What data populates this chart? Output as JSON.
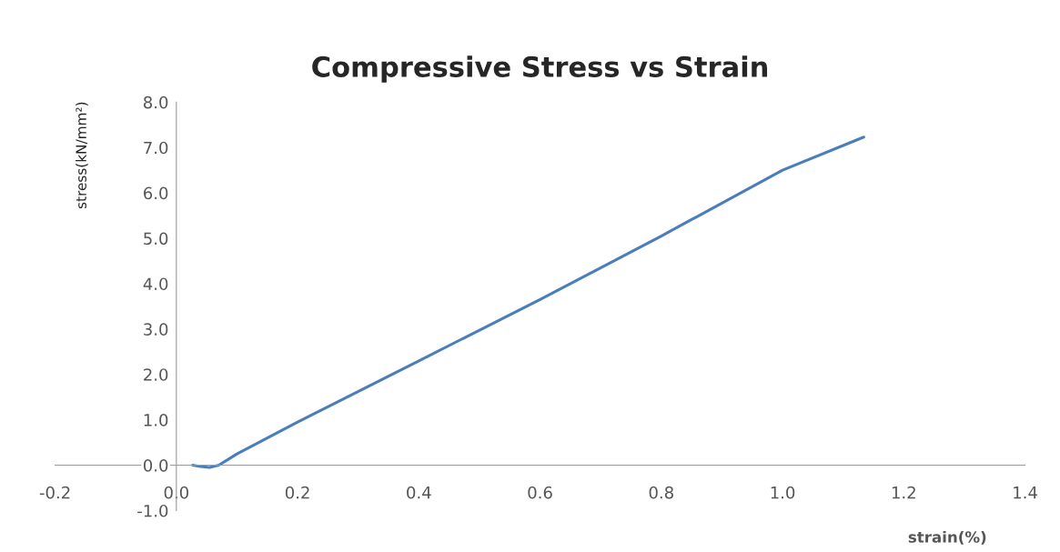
{
  "chart_data": {
    "type": "line",
    "title": "Compressive Stress vs Strain",
    "xlabel": "strain(%)",
    "ylabel": "stress(kN/mm²)",
    "series": [
      {
        "color": "#4a7ebb",
        "x": [
          0.027,
          0.04,
          0.055,
          0.07,
          0.1,
          0.2,
          0.4,
          0.6,
          0.8,
          1.0,
          1.134
        ],
        "values": [
          0.0,
          -0.03,
          -0.05,
          0.0,
          0.25,
          0.95,
          2.3,
          3.65,
          5.05,
          6.5,
          7.23
        ]
      }
    ],
    "xlim": [
      -0.2,
      1.4
    ],
    "xticks": [
      {
        "value": -0.2,
        "label": "-0.2"
      },
      {
        "value": 0,
        "label": "0.0"
      },
      0.2,
      0.4,
      0.6,
      0.8,
      {
        "value": 1.0,
        "label": "1.0"
      },
      1.2,
      1.4
    ],
    "ylim": [
      -1.0,
      8.0
    ],
    "yticks": [
      {
        "value": -1.0,
        "label": "-1.0"
      },
      {
        "value": 0,
        "label": "0.0"
      },
      {
        "value": 1,
        "label": "1.0"
      },
      {
        "value": 2,
        "label": "2.0"
      },
      {
        "value": 3,
        "label": "3.0"
      },
      {
        "value": 4,
        "label": "4.0"
      },
      {
        "value": 5,
        "label": "5.0"
      },
      {
        "value": 6,
        "label": "6.0"
      },
      {
        "value": 7,
        "label": "7.0"
      },
      {
        "value": 8,
        "label": "8.0"
      }
    ],
    "grid": false,
    "marker": "none",
    "line_style": "solid"
  }
}
